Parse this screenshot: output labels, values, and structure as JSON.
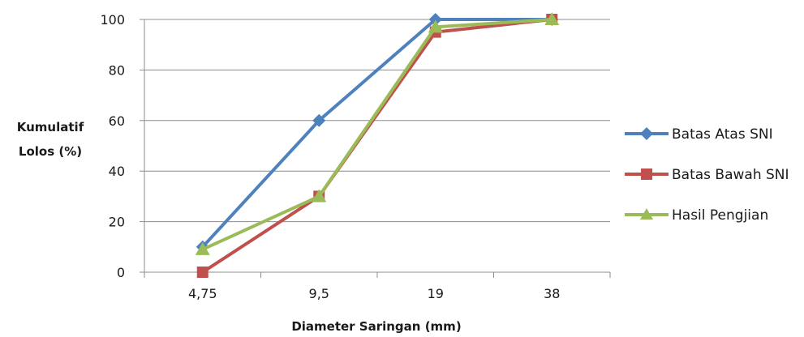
{
  "chart_data": {
    "type": "line",
    "categories": [
      "4,75",
      "9,5",
      "19",
      "38"
    ],
    "ylabel_lines": [
      "Kumulatif",
      "Lolos (%)"
    ],
    "xlabel": "Diameter Saringan (mm)",
    "ylim": [
      0,
      100
    ],
    "yticks": [
      0,
      20,
      40,
      60,
      80,
      100
    ],
    "grid": "horizontal",
    "legend_position": "right",
    "series": [
      {
        "name": "Batas Atas SNI",
        "values": [
          10,
          60,
          100,
          100
        ],
        "color": "#4f81bd",
        "marker": "diamond"
      },
      {
        "name": "Batas Bawah SNI",
        "values": [
          0,
          30,
          95,
          100
        ],
        "color": "#c0504d",
        "marker": "square"
      },
      {
        "name": "Hasil Pengjian",
        "values": [
          9,
          30,
          97,
          100
        ],
        "color": "#9bbb59",
        "marker": "triangle"
      }
    ]
  }
}
